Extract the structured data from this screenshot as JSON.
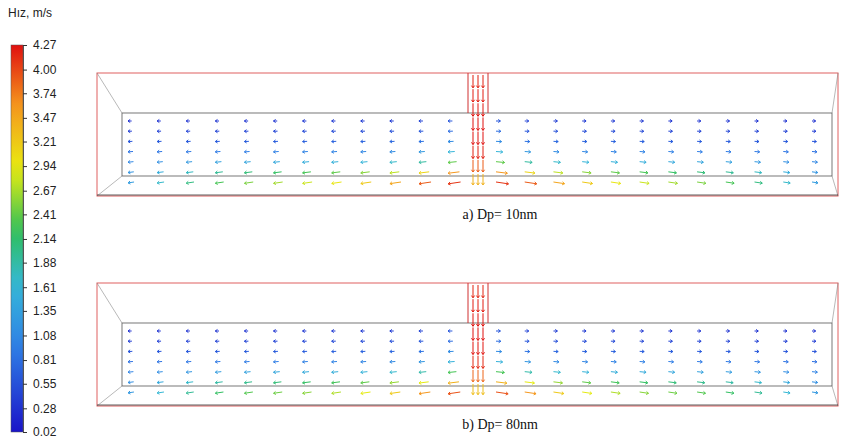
{
  "chart_data": {
    "type": "vector_field",
    "colorbar": {
      "title": "Hız, m/s",
      "range": [
        0.02,
        4.27
      ],
      "ticks": [
        4.27,
        {
          "value": 4,
          "label": "4.00"
        },
        3.74,
        3.47,
        3.21,
        2.94,
        2.67,
        2.41,
        2.14,
        1.88,
        1.61,
        1.35,
        1.08,
        0.81,
        0.55,
        0.28,
        0.02
      ]
    },
    "panels": [
      {
        "title": "a) Dp= 10nm",
        "speeds": [
          [
            0.28,
            0.3,
            0.3,
            0.32,
            0.32,
            0.33,
            0.35,
            0.36,
            0.38,
            0.4,
            0.45,
            0.6,
            0.6,
            0.45,
            0.4,
            0.38,
            0.36,
            0.35,
            0.33,
            0.32,
            0.32,
            0.3,
            0.3,
            0.28
          ],
          [
            0.4,
            0.42,
            0.43,
            0.44,
            0.45,
            0.46,
            0.48,
            0.5,
            0.52,
            0.55,
            0.6,
            0.8,
            0.8,
            0.6,
            0.55,
            0.52,
            0.5,
            0.48,
            0.46,
            0.45,
            0.44,
            0.43,
            0.42,
            0.4
          ],
          [
            0.6,
            0.62,
            0.62,
            0.64,
            0.65,
            0.66,
            0.68,
            0.7,
            0.72,
            0.75,
            0.85,
            1.1,
            1.1,
            0.85,
            0.75,
            0.72,
            0.7,
            0.68,
            0.66,
            0.65,
            0.64,
            0.62,
            0.62,
            0.6
          ],
          [
            0.85,
            0.88,
            0.9,
            0.92,
            0.95,
            0.98,
            1.0,
            1.02,
            1.05,
            1.1,
            1.25,
            1.6,
            1.6,
            1.25,
            1.1,
            1.05,
            1.02,
            1.0,
            0.98,
            0.95,
            0.92,
            0.9,
            0.88,
            0.85
          ],
          [
            1.05,
            1.15,
            1.25,
            1.35,
            1.4,
            1.45,
            1.5,
            1.55,
            1.6,
            1.7,
            1.9,
            2.4,
            2.4,
            1.9,
            1.7,
            1.6,
            1.55,
            1.5,
            1.45,
            1.4,
            1.35,
            1.25,
            1.15,
            1.05
          ],
          [
            1.2,
            1.5,
            1.75,
            1.95,
            2.1,
            2.2,
            2.3,
            2.4,
            2.55,
            2.75,
            3.1,
            3.6,
            3.6,
            3.1,
            2.75,
            2.55,
            2.4,
            2.3,
            2.2,
            2.1,
            1.95,
            1.75,
            1.5,
            1.2
          ],
          [
            1.3,
            1.7,
            2.05,
            2.3,
            2.5,
            2.65,
            2.8,
            2.95,
            3.2,
            3.5,
            3.9,
            4.1,
            4.1,
            3.9,
            3.5,
            3.2,
            2.95,
            2.8,
            2.65,
            2.5,
            2.3,
            2.05,
            1.7,
            1.3
          ]
        ],
        "jet_speeds": [
          4.2,
          4.22,
          4.25,
          4.27,
          4.27,
          4.2,
          3.9,
          3.4
        ]
      },
      {
        "title": "b) Dp= 80nm",
        "speeds": [
          [
            0.28,
            0.3,
            0.3,
            0.31,
            0.32,
            0.33,
            0.34,
            0.35,
            0.37,
            0.4,
            0.45,
            0.6,
            0.6,
            0.45,
            0.4,
            0.37,
            0.35,
            0.34,
            0.33,
            0.32,
            0.31,
            0.3,
            0.3,
            0.28
          ],
          [
            0.4,
            0.41,
            0.42,
            0.43,
            0.44,
            0.45,
            0.47,
            0.49,
            0.51,
            0.54,
            0.6,
            0.8,
            0.8,
            0.6,
            0.54,
            0.51,
            0.49,
            0.47,
            0.45,
            0.44,
            0.43,
            0.42,
            0.41,
            0.4
          ],
          [
            0.58,
            0.6,
            0.61,
            0.62,
            0.64,
            0.65,
            0.66,
            0.68,
            0.7,
            0.74,
            0.85,
            1.1,
            1.1,
            0.85,
            0.74,
            0.7,
            0.68,
            0.66,
            0.65,
            0.64,
            0.62,
            0.61,
            0.6,
            0.58
          ],
          [
            0.82,
            0.85,
            0.88,
            0.9,
            0.92,
            0.95,
            0.98,
            1.0,
            1.03,
            1.08,
            1.22,
            1.55,
            1.55,
            1.22,
            1.08,
            1.03,
            1.0,
            0.98,
            0.95,
            0.92,
            0.9,
            0.88,
            0.85,
            0.82
          ],
          [
            1.02,
            1.12,
            1.22,
            1.3,
            1.36,
            1.42,
            1.47,
            1.52,
            1.58,
            1.68,
            1.85,
            2.3,
            2.3,
            1.85,
            1.68,
            1.58,
            1.52,
            1.47,
            1.42,
            1.36,
            1.3,
            1.22,
            1.12,
            1.02
          ],
          [
            1.15,
            1.45,
            1.7,
            1.88,
            2.0,
            2.1,
            2.2,
            2.28,
            2.4,
            2.6,
            2.9,
            3.4,
            3.4,
            2.9,
            2.6,
            2.4,
            2.28,
            2.2,
            2.1,
            2.0,
            1.88,
            1.7,
            1.45,
            1.15
          ],
          [
            1.25,
            1.65,
            1.95,
            2.2,
            2.35,
            2.45,
            2.55,
            2.7,
            2.9,
            3.2,
            3.6,
            3.95,
            3.95,
            3.6,
            3.2,
            2.9,
            2.7,
            2.55,
            2.45,
            2.35,
            2.2,
            1.95,
            1.65,
            1.25
          ]
        ],
        "jet_speeds": [
          4.18,
          4.22,
          4.25,
          4.27,
          4.25,
          4.15,
          3.85,
          3.3
        ]
      }
    ]
  }
}
